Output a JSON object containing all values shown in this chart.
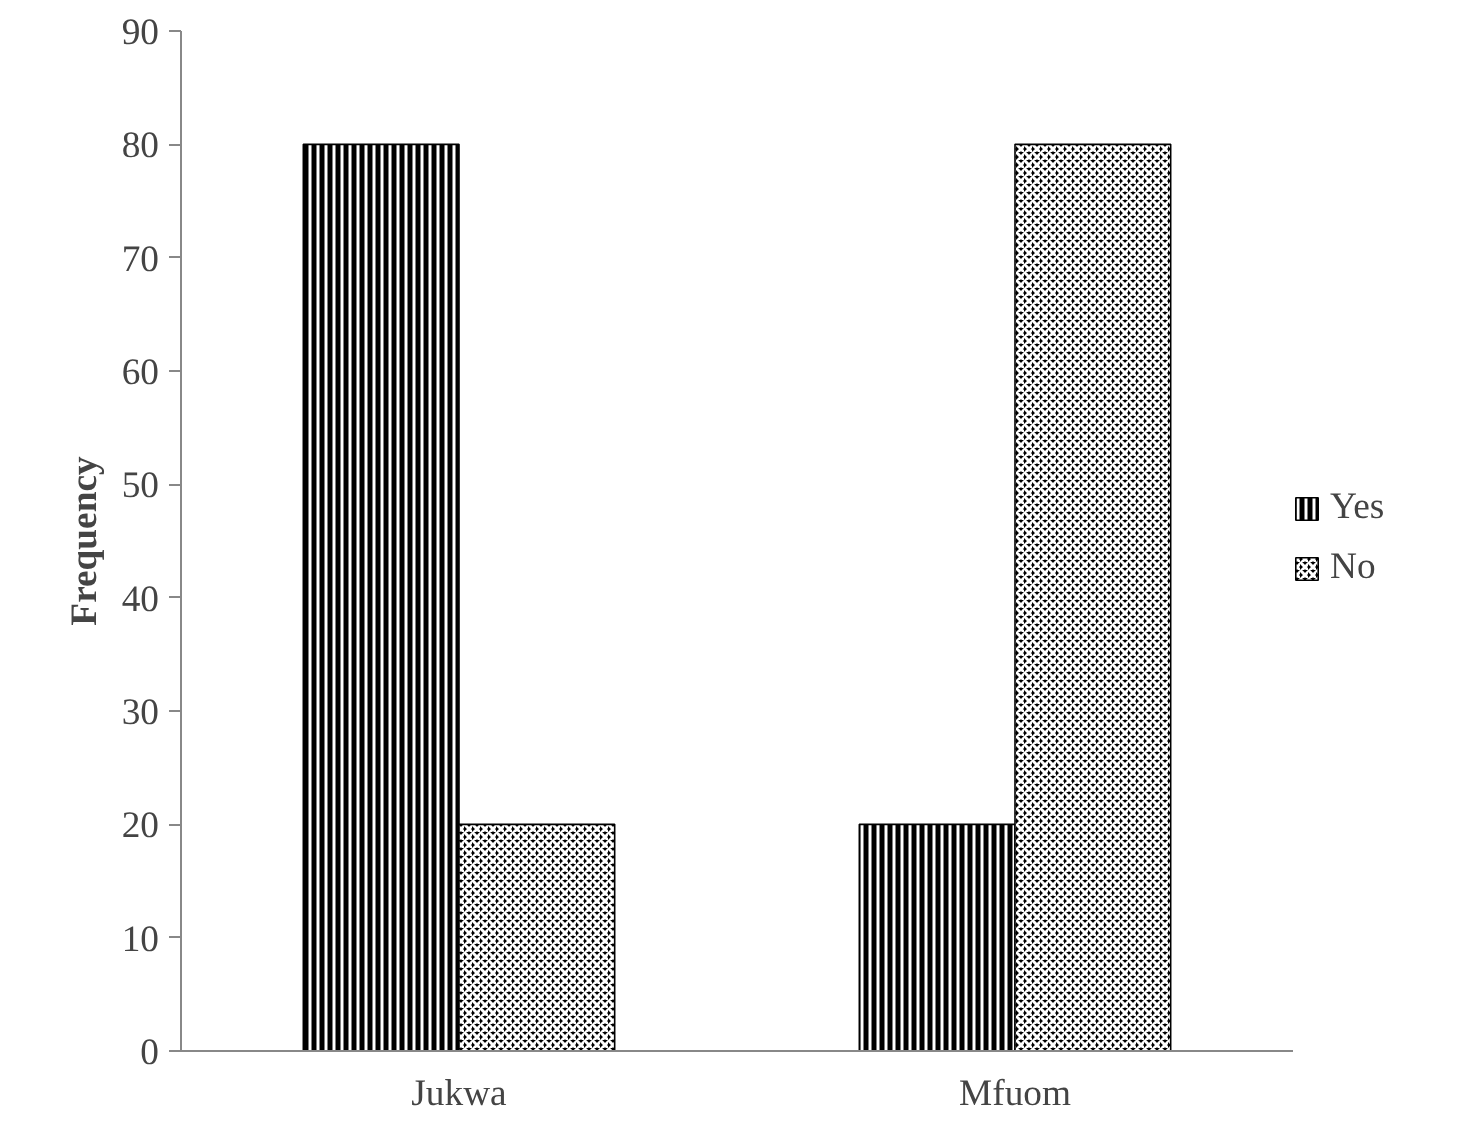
{
  "chart_data": {
    "type": "bar",
    "ylabel": "Frequency",
    "categories": [
      "Jukwa",
      "Mfuom"
    ],
    "series": [
      {
        "name": "Yes",
        "color": "#000000",
        "values": [
          80,
          20
        ]
      },
      {
        "name": "No",
        "color": "#000000",
        "values": [
          20,
          80
        ]
      }
    ],
    "ylim": [
      0,
      90
    ],
    "yticks": [
      0,
      10,
      20,
      30,
      40,
      50,
      60,
      70,
      80,
      90
    ],
    "grid": false,
    "legend": "right"
  }
}
